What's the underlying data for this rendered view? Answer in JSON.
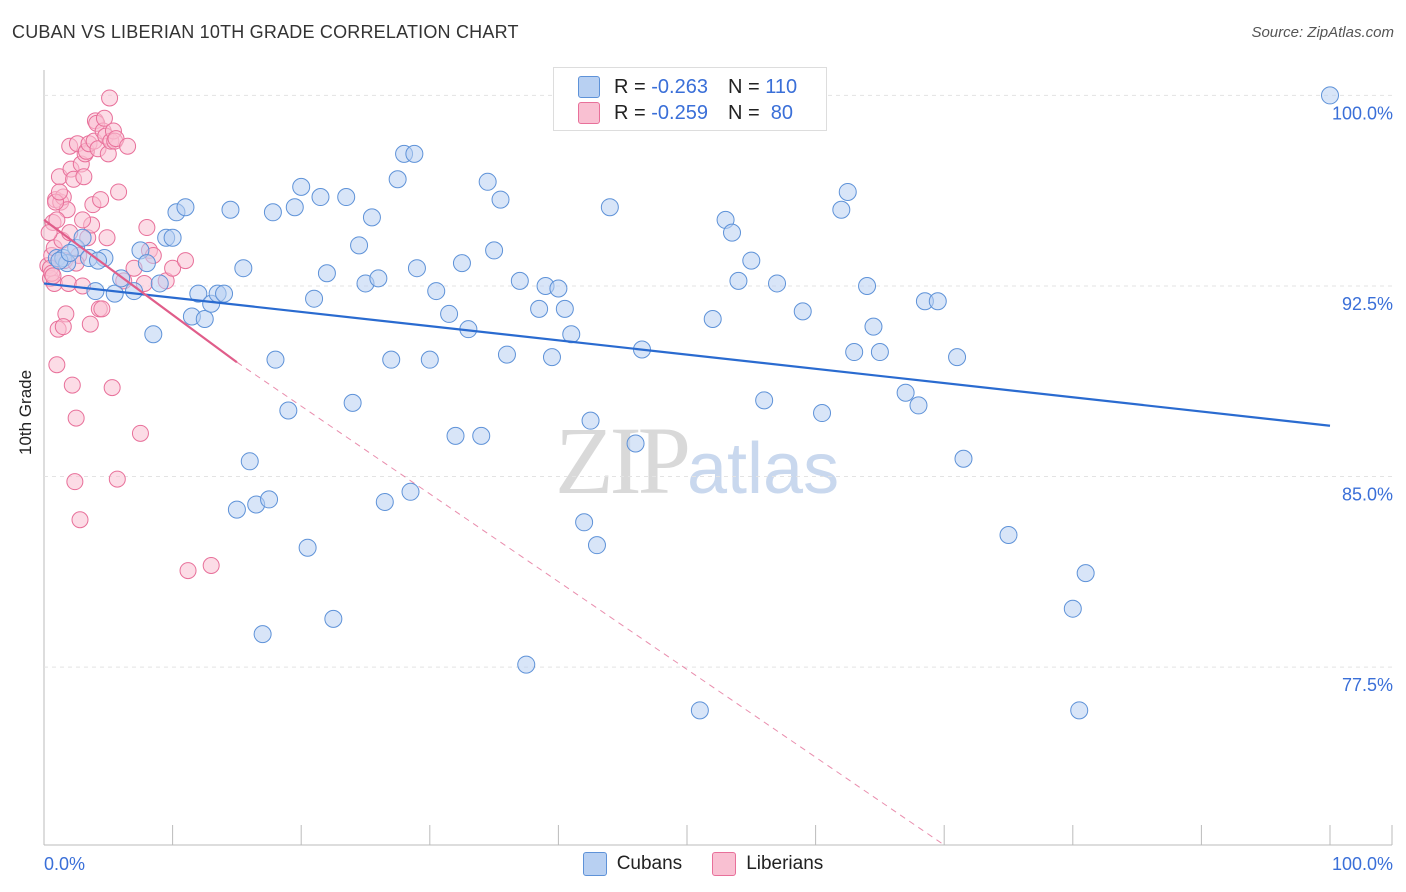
{
  "title": "CUBAN VS LIBERIAN 10TH GRADE CORRELATION CHART",
  "source": "Source: ZipAtlas.com",
  "watermark_zip": "ZIP",
  "watermark_atlas": "atlas",
  "legend_top": [
    {
      "r_label": "R = ",
      "r_value": "-0.263",
      "n_label": "N = ",
      "n_value": "110"
    },
    {
      "r_label": "R = ",
      "r_value": "-0.259",
      "n_label": "N = ",
      "n_value": "80"
    }
  ],
  "legend_bottom": [
    "Cubans",
    "Liberians"
  ],
  "colors": {
    "cubans_fill": "#b8d0f2",
    "cubans_stroke": "#5e92d8",
    "cubans_line": "#2a6bd0",
    "liberians_fill": "#f9c0d2",
    "liberians_stroke": "#e8709a",
    "liberians_line": "#e05d8a",
    "tick_text": "#3a6fd8",
    "grid": "#e3e3e3"
  },
  "chart_data": {
    "type": "scatter",
    "title": "CUBAN VS LIBERIAN 10TH GRADE CORRELATION CHART",
    "xlabel": "",
    "ylabel": "10th Grade",
    "xlim": [
      0,
      100
    ],
    "ylim": [
      70.5,
      101
    ],
    "x_tick_labels": [
      "0.0%",
      "100.0%"
    ],
    "y_ticks": [
      77.5,
      85.0,
      92.5,
      100.0
    ],
    "y_tick_labels": [
      "77.5%",
      "85.0%",
      "92.5%",
      "100.0%"
    ],
    "grid": true,
    "legend_position": "top-center",
    "series": [
      {
        "name": "Cubans",
        "trend": {
          "x": [
            0,
            100
          ],
          "y": [
            92.6,
            87.0
          ]
        },
        "points": [
          [
            1,
            93.6
          ],
          [
            1.5,
            93.6
          ],
          [
            1.8,
            93.4
          ],
          [
            2.5,
            94.0
          ],
          [
            3,
            94.4
          ],
          [
            3.5,
            93.6
          ],
          [
            4,
            92.3
          ],
          [
            4.7,
            93.6
          ],
          [
            5.5,
            92.2
          ],
          [
            6,
            92.8
          ],
          [
            7,
            92.3
          ],
          [
            7.5,
            93.9
          ],
          [
            8,
            93.4
          ],
          [
            8.5,
            90.6
          ],
          [
            9,
            92.6
          ],
          [
            9.5,
            94.4
          ],
          [
            10,
            94.4
          ],
          [
            10.3,
            95.4
          ],
          [
            11,
            95.6
          ],
          [
            11.5,
            91.3
          ],
          [
            12,
            92.2
          ],
          [
            12.5,
            91.2
          ],
          [
            13,
            91.8
          ],
          [
            13.5,
            92.2
          ],
          [
            14,
            92.2
          ],
          [
            14.5,
            95.5
          ],
          [
            15,
            83.7
          ],
          [
            15.5,
            93.2
          ],
          [
            16,
            85.6
          ],
          [
            16.5,
            83.9
          ],
          [
            17,
            78.8
          ],
          [
            17.5,
            84.1
          ],
          [
            17.8,
            95.4
          ],
          [
            18,
            89.6
          ],
          [
            19,
            87.6
          ],
          [
            19.5,
            95.6
          ],
          [
            20,
            96.4
          ],
          [
            20.5,
            82.2
          ],
          [
            21,
            92.0
          ],
          [
            21.5,
            96.0
          ],
          [
            22,
            93.0
          ],
          [
            22.5,
            79.4
          ],
          [
            23.5,
            96.0
          ],
          [
            24,
            87.9
          ],
          [
            24.5,
            94.1
          ],
          [
            25,
            92.6
          ],
          [
            25.5,
            95.2
          ],
          [
            26,
            92.8
          ],
          [
            26.5,
            84.0
          ],
          [
            27,
            89.6
          ],
          [
            27.5,
            96.7
          ],
          [
            28,
            97.7
          ],
          [
            28.5,
            84.4
          ],
          [
            28.8,
            97.7
          ],
          [
            29,
            93.2
          ],
          [
            30,
            89.6
          ],
          [
            30.5,
            92.3
          ],
          [
            31.5,
            91.4
          ],
          [
            32,
            86.6
          ],
          [
            32.5,
            93.4
          ],
          [
            33,
            90.8
          ],
          [
            34,
            86.6
          ],
          [
            34.5,
            96.6
          ],
          [
            35,
            93.9
          ],
          [
            35.5,
            95.9
          ],
          [
            36,
            89.8
          ],
          [
            37,
            92.7
          ],
          [
            37.5,
            77.6
          ],
          [
            38.5,
            91.6
          ],
          [
            39,
            92.5
          ],
          [
            39.5,
            89.7
          ],
          [
            40,
            92.4
          ],
          [
            40.5,
            91.6
          ],
          [
            41,
            90.6
          ],
          [
            42,
            83.2
          ],
          [
            42.5,
            87.2
          ],
          [
            43,
            82.3
          ],
          [
            44,
            95.6
          ],
          [
            46,
            86.3
          ],
          [
            46.5,
            90.0
          ],
          [
            51,
            75.8
          ],
          [
            52,
            91.2
          ],
          [
            53,
            95.1
          ],
          [
            53.5,
            94.6
          ],
          [
            54,
            92.7
          ],
          [
            55,
            93.5
          ],
          [
            56,
            88.0
          ],
          [
            57,
            92.6
          ],
          [
            59,
            91.5
          ],
          [
            60.5,
            87.5
          ],
          [
            62,
            95.5
          ],
          [
            62.5,
            96.2
          ],
          [
            63,
            89.9
          ],
          [
            64,
            92.5
          ],
          [
            64.5,
            90.9
          ],
          [
            65,
            89.9
          ],
          [
            67,
            88.3
          ],
          [
            68,
            87.8
          ],
          [
            68.5,
            91.9
          ],
          [
            69.5,
            91.9
          ],
          [
            71,
            89.7
          ],
          [
            71.5,
            85.7
          ],
          [
            75,
            82.7
          ],
          [
            80,
            79.8
          ],
          [
            81,
            81.2
          ],
          [
            80.5,
            75.8
          ],
          [
            100,
            100.0
          ],
          [
            1.2,
            93.5
          ],
          [
            2,
            93.8
          ],
          [
            4.2,
            93.5
          ]
        ]
      },
      {
        "name": "Liberians",
        "trend": {
          "x": [
            0,
            15
          ],
          "y": [
            95.1,
            89.5
          ]
        },
        "trend_dashed": {
          "x": [
            15,
            70
          ],
          "y": [
            89.5,
            70.5
          ]
        },
        "points": [
          [
            0.3,
            93.3
          ],
          [
            0.5,
            92.8
          ],
          [
            0.6,
            93.7
          ],
          [
            0.7,
            95.0
          ],
          [
            0.8,
            94.0
          ],
          [
            0.8,
            92.6
          ],
          [
            0.9,
            95.9
          ],
          [
            1,
            89.4
          ],
          [
            1.1,
            90.8
          ],
          [
            1.2,
            96.8
          ],
          [
            1.3,
            95.8
          ],
          [
            1.4,
            94.3
          ],
          [
            1.5,
            96.0
          ],
          [
            1.6,
            93.5
          ],
          [
            1.7,
            91.4
          ],
          [
            1.8,
            95.5
          ],
          [
            1.9,
            92.6
          ],
          [
            2,
            98.0
          ],
          [
            2.1,
            97.1
          ],
          [
            2.2,
            88.6
          ],
          [
            2.3,
            96.7
          ],
          [
            2.4,
            84.8
          ],
          [
            2.5,
            87.3
          ],
          [
            2.6,
            98.1
          ],
          [
            2.7,
            93.7
          ],
          [
            2.8,
            83.3
          ],
          [
            2.9,
            97.3
          ],
          [
            3,
            92.5
          ],
          [
            3.1,
            96.8
          ],
          [
            3.2,
            97.7
          ],
          [
            3.3,
            97.8
          ],
          [
            3.4,
            94.4
          ],
          [
            3.5,
            98.1
          ],
          [
            3.6,
            91.0
          ],
          [
            3.7,
            94.9
          ],
          [
            3.8,
            95.7
          ],
          [
            3.9,
            98.2
          ],
          [
            4,
            99.0
          ],
          [
            4.1,
            98.9
          ],
          [
            4.2,
            97.9
          ],
          [
            4.3,
            91.6
          ],
          [
            4.4,
            95.9
          ],
          [
            4.5,
            91.6
          ],
          [
            4.6,
            98.6
          ],
          [
            4.7,
            99.1
          ],
          [
            4.8,
            98.4
          ],
          [
            4.9,
            94.4
          ],
          [
            5,
            97.7
          ],
          [
            5.1,
            99.9
          ],
          [
            5.2,
            98.2
          ],
          [
            5.3,
            88.5
          ],
          [
            5.4,
            98.6
          ],
          [
            5.5,
            98.2
          ],
          [
            5.6,
            98.3
          ],
          [
            5.7,
            84.9
          ],
          [
            5.8,
            96.2
          ],
          [
            6.2,
            92.7
          ],
          [
            6.5,
            98.0
          ],
          [
            7,
            93.2
          ],
          [
            7.5,
            86.7
          ],
          [
            7.8,
            92.6
          ],
          [
            8,
            94.8
          ],
          [
            8.2,
            93.9
          ],
          [
            8.5,
            93.7
          ],
          [
            9.5,
            92.7
          ],
          [
            10,
            93.2
          ],
          [
            11,
            93.5
          ],
          [
            11.2,
            81.3
          ],
          [
            13,
            81.5
          ],
          [
            0.4,
            94.6
          ],
          [
            0.5,
            93.2
          ],
          [
            0.6,
            93.0
          ],
          [
            0.7,
            92.9
          ],
          [
            0.9,
            95.8
          ],
          [
            1.0,
            95.1
          ],
          [
            1.2,
            96.2
          ],
          [
            1.5,
            90.9
          ],
          [
            2.0,
            94.6
          ],
          [
            2.5,
            93.4
          ],
          [
            3.0,
            95.1
          ]
        ]
      }
    ]
  }
}
